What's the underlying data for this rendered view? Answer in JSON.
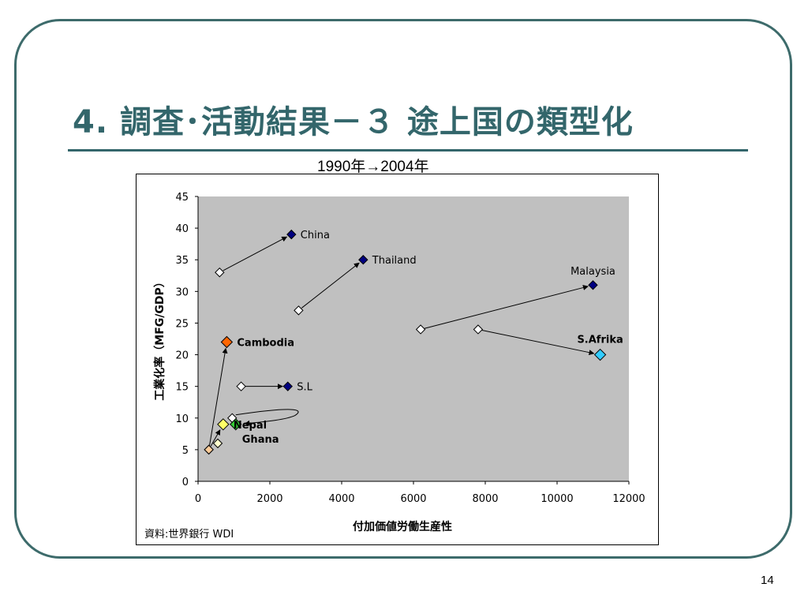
{
  "slide": {
    "title": "4.  調査･活動結果－３  途上国の類型化",
    "subtitle": "1990年→2004年",
    "source": "資料:世界銀行  WDI",
    "page_number": "14"
  },
  "colors": {
    "accent": "#33666b",
    "plot_bg": "#c0c0c0",
    "marker_1990": "#ffffff",
    "marker_2004": "#000080",
    "cambodia_2004": "#ff6600",
    "ghana_2004": "#33cc33",
    "safrica_2004": "#33ccff",
    "nepal_1990": "#ffcc99",
    "ghana_1990_light": "#ffff66"
  },
  "chart_data": {
    "type": "scatter",
    "xlabel": "付加価値労働生産性",
    "ylabel": "工業化率（MFG/GDP）",
    "xlim": [
      0,
      12000
    ],
    "ylim": [
      0,
      45
    ],
    "x_ticks": [
      0,
      2000,
      4000,
      6000,
      8000,
      10000,
      12000
    ],
    "y_ticks": [
      0,
      5,
      10,
      15,
      20,
      25,
      30,
      35,
      40,
      45
    ],
    "grid": false,
    "countries": [
      {
        "name": "China",
        "label": "China",
        "from": [
          600,
          33
        ],
        "to": [
          2600,
          39
        ],
        "to_color": "#000080",
        "from_color": "#ffffff",
        "label_side": "right",
        "label_bold": false
      },
      {
        "name": "Thailand",
        "label": "Thailand",
        "from": [
          2800,
          27
        ],
        "to": [
          4600,
          35
        ],
        "to_color": "#000080",
        "from_color": "#ffffff",
        "label_side": "right",
        "label_bold": false
      },
      {
        "name": "Malaysia",
        "label": "Malaysia",
        "from": [
          6200,
          24
        ],
        "to": [
          11000,
          31
        ],
        "to_color": "#000080",
        "from_color": "#ffffff",
        "label_side": "above",
        "label_bold": false
      },
      {
        "name": "S.Afrika",
        "label": "S.Afrika",
        "from": [
          7800,
          24
        ],
        "to": [
          11200,
          20
        ],
        "to_color": "#33ccff",
        "from_color": "#ffffff",
        "label_side": "above",
        "label_bold": true
      },
      {
        "name": "S.L",
        "label": "S.L",
        "from": [
          1200,
          15
        ],
        "to": [
          2500,
          15
        ],
        "to_color": "#000080",
        "from_color": "#ffffff",
        "label_side": "right",
        "label_bold": false
      },
      {
        "name": "Cambodia",
        "label": "Cambodia",
        "from": [
          300,
          5
        ],
        "to": [
          800,
          22
        ],
        "to_color": "#ff6600",
        "from_color": "#ffcc99",
        "label_side": "right",
        "label_bold": true
      },
      {
        "name": "Ghana",
        "label": "Ghana",
        "from": [
          950,
          10
        ],
        "to": [
          1050,
          9
        ],
        "to_color": "#33cc33",
        "from_color": "#ffffff",
        "label_side": "below",
        "label_bold": true
      },
      {
        "name": "Nepal",
        "label": "Nepal",
        "from": [
          300,
          5
        ],
        "to": [
          700,
          9
        ],
        "to_color": "#ffff66",
        "from_color": "#ffcc99",
        "label_side": "right",
        "label_bold": true
      }
    ],
    "extra_points": [
      {
        "x": 550,
        "y": 6,
        "color": "#ffffcc"
      }
    ]
  }
}
